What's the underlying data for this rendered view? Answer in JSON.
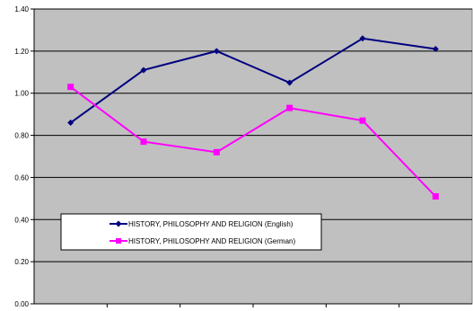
{
  "chart_data": {
    "type": "line",
    "categories": [
      "",
      "",
      "",
      "",
      "",
      ""
    ],
    "ylim": [
      0,
      1.4
    ],
    "yticks": [
      "0.00",
      "0.20",
      "0.40",
      "0.60",
      "0.80",
      "1.00",
      "1.20",
      "1.40"
    ],
    "grid": true,
    "legend_position": "lower-left inside plot",
    "plot_background": "#c0c0c0",
    "series": [
      {
        "name": "HISTORY, PHILOSOPHY AND RELIGION (English)",
        "color": "#000080",
        "marker": "diamond",
        "values": [
          0.86,
          1.11,
          1.2,
          1.05,
          1.26,
          1.21
        ]
      },
      {
        "name": "HISTORY, PHILOSOPHY AND RELIGION (German)",
        "color": "#ff00ff",
        "marker": "square",
        "values": [
          1.03,
          0.77,
          0.72,
          0.93,
          0.87,
          0.51
        ]
      }
    ]
  }
}
